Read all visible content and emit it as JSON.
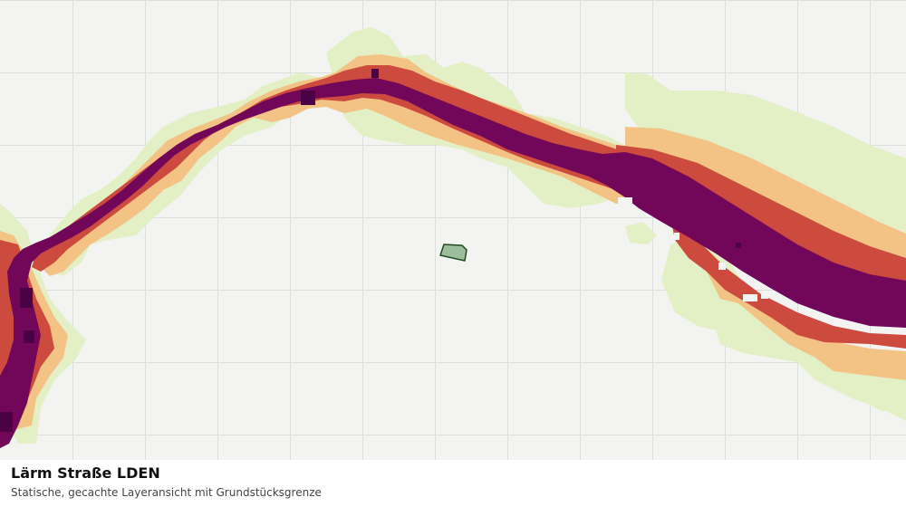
{
  "caption": {
    "title": "Lärm Straße LDEN",
    "subtitle": "Statische, gecachte Layeransicht mit Grundstücksgrenze"
  },
  "map": {
    "background_color": "#f3f4f2",
    "grid_color": "#dcdedb",
    "noise_band_colors": [
      "#e3efc4",
      "#f2c384",
      "#cd4a3f",
      "#72075a",
      "#4a0245"
    ],
    "parcel": {
      "fill": "#9dbe9d",
      "stroke": "#1f4a1f"
    }
  }
}
